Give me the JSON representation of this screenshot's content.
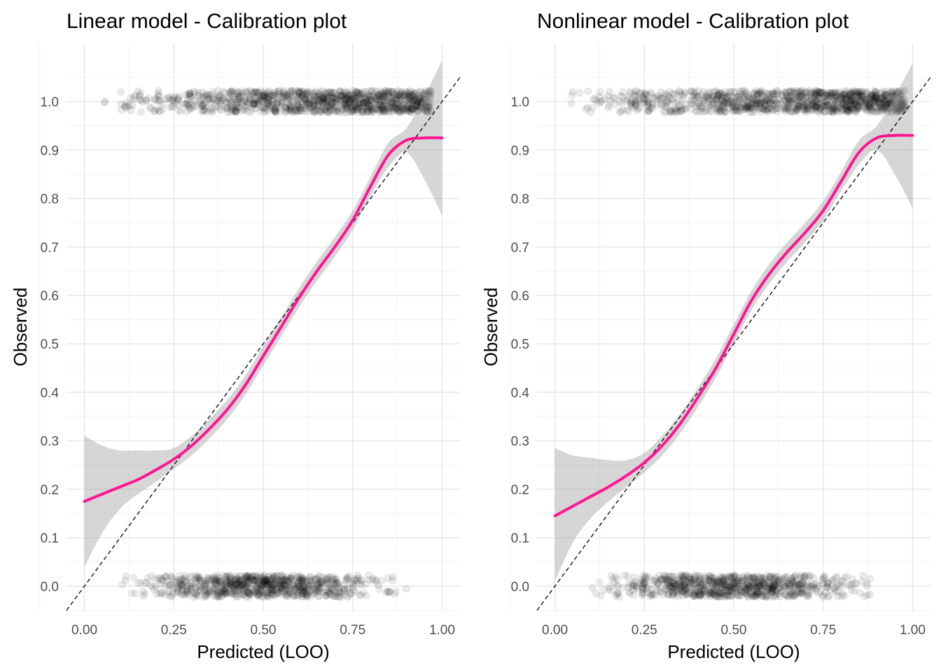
{
  "chart_data": [
    {
      "type": "scatter",
      "title": "Linear model - Calibration plot",
      "xlabel": "Predicted (LOO)",
      "ylabel": "Observed",
      "xlim": [
        -0.05,
        1.05
      ],
      "ylim": [
        -0.05,
        1.12
      ],
      "grid": true,
      "x_ticks": [
        "0.00",
        "0.25",
        "0.50",
        "0.75",
        "1.00"
      ],
      "y_ticks": [
        "0.0",
        "0.1",
        "0.2",
        "0.3",
        "0.4",
        "0.5",
        "0.6",
        "0.7",
        "0.8",
        "0.9",
        "1.0"
      ],
      "reference_line": {
        "style": "dashed",
        "color": "#000000",
        "from": [
          -0.05,
          -0.05
        ],
        "to": [
          1.05,
          1.05
        ]
      },
      "series": [
        {
          "kind": "smooth",
          "color": "#ff1493",
          "x": [
            0.0,
            0.05,
            0.1,
            0.15,
            0.2,
            0.25,
            0.3,
            0.35,
            0.4,
            0.45,
            0.5,
            0.55,
            0.6,
            0.65,
            0.7,
            0.75,
            0.8,
            0.85,
            0.9,
            0.95,
            1.0
          ],
          "y": [
            0.175,
            0.19,
            0.205,
            0.22,
            0.24,
            0.262,
            0.29,
            0.325,
            0.365,
            0.415,
            0.475,
            0.535,
            0.595,
            0.65,
            0.7,
            0.755,
            0.825,
            0.89,
            0.92,
            0.925,
            0.925
          ],
          "band_lower": [
            0.04,
            0.11,
            0.16,
            0.19,
            0.215,
            0.242,
            0.27,
            0.305,
            0.345,
            0.395,
            0.455,
            0.515,
            0.575,
            0.63,
            0.68,
            0.735,
            0.805,
            0.865,
            0.895,
            0.84,
            0.765
          ],
          "band_upper": [
            0.31,
            0.29,
            0.28,
            0.28,
            0.28,
            0.285,
            0.31,
            0.345,
            0.385,
            0.435,
            0.495,
            0.555,
            0.615,
            0.67,
            0.72,
            0.775,
            0.845,
            0.915,
            0.945,
            1.01,
            1.085
          ]
        }
      ],
      "points": {
        "color": "#000000",
        "opacity": 0.08,
        "groups": [
          {
            "observed": 1,
            "x_range": [
              0.05,
              0.97
            ],
            "density": "increasing toward 0.9"
          },
          {
            "observed": 0,
            "x_range": [
              0.03,
              0.97
            ],
            "density": "highest 0.3–0.8"
          }
        ]
      }
    },
    {
      "type": "scatter",
      "title": "Nonlinear model - Calibration plot",
      "xlabel": "Predicted (LOO)",
      "ylabel": "Observed",
      "xlim": [
        -0.05,
        1.05
      ],
      "ylim": [
        -0.05,
        1.12
      ],
      "grid": true,
      "x_ticks": [
        "0.00",
        "0.25",
        "0.50",
        "0.75",
        "1.00"
      ],
      "y_ticks": [
        "0.0",
        "0.1",
        "0.2",
        "0.3",
        "0.4",
        "0.5",
        "0.6",
        "0.7",
        "0.8",
        "0.9",
        "1.0"
      ],
      "reference_line": {
        "style": "dashed",
        "color": "#000000",
        "from": [
          -0.05,
          -0.05
        ],
        "to": [
          1.05,
          1.05
        ]
      },
      "series": [
        {
          "kind": "smooth",
          "color": "#ff1493",
          "x": [
            0.0,
            0.05,
            0.1,
            0.15,
            0.2,
            0.25,
            0.3,
            0.35,
            0.4,
            0.45,
            0.5,
            0.55,
            0.6,
            0.65,
            0.7,
            0.75,
            0.8,
            0.85,
            0.9,
            0.95,
            1.0
          ],
          "y": [
            0.145,
            0.165,
            0.185,
            0.205,
            0.228,
            0.255,
            0.29,
            0.335,
            0.39,
            0.45,
            0.52,
            0.59,
            0.645,
            0.69,
            0.73,
            0.775,
            0.835,
            0.895,
            0.925,
            0.93,
            0.93
          ],
          "band_lower": [
            0.01,
            0.09,
            0.14,
            0.175,
            0.205,
            0.235,
            0.27,
            0.315,
            0.37,
            0.43,
            0.5,
            0.57,
            0.625,
            0.67,
            0.71,
            0.755,
            0.815,
            0.87,
            0.9,
            0.85,
            0.78
          ],
          "band_upper": [
            0.285,
            0.27,
            0.265,
            0.26,
            0.26,
            0.275,
            0.31,
            0.355,
            0.41,
            0.47,
            0.54,
            0.61,
            0.665,
            0.71,
            0.75,
            0.795,
            0.855,
            0.92,
            0.95,
            1.01,
            1.08
          ]
        }
      ],
      "points": {
        "color": "#000000",
        "opacity": 0.08,
        "groups": [
          {
            "observed": 1,
            "x_range": [
              0.03,
              0.98
            ],
            "density": "increasing toward 0.9"
          },
          {
            "observed": 0,
            "x_range": [
              0.02,
              0.96
            ],
            "density": "highest 0.2–0.8"
          }
        ]
      }
    }
  ]
}
